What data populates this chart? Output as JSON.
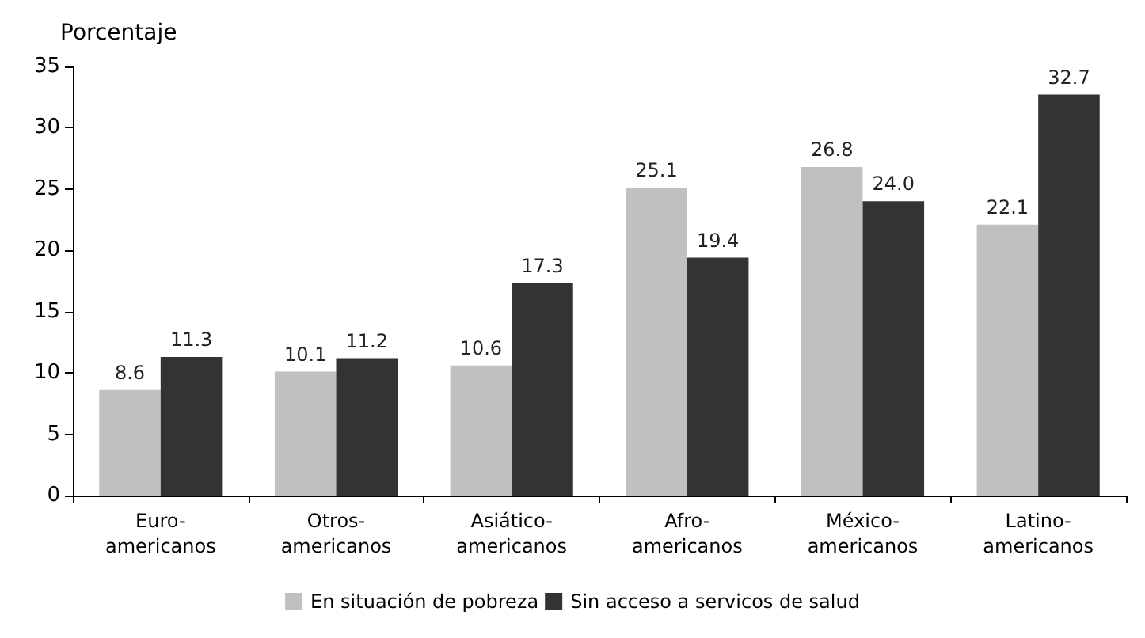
{
  "chart_data": {
    "type": "bar",
    "ylabel": "Porcentaje",
    "categories": [
      "Euro-\namericanos",
      "Otros-\namericanos",
      "Asiático-\namericanos",
      "Afro-\namericanos",
      "México-\namericanos",
      "Latino-\namericanos"
    ],
    "series": [
      {
        "name": "En situación de pobreza",
        "color": "#c0c0c0",
        "values": [
          8.6,
          10.1,
          10.6,
          25.1,
          26.8,
          22.1
        ],
        "value_labels": [
          "8.6",
          "10.1",
          "10.6",
          "25.1",
          "26.8",
          "22.1"
        ]
      },
      {
        "name": "Sin acceso a servicos de salud",
        "color": "#333333",
        "values": [
          11.3,
          11.2,
          17.3,
          19.4,
          24.0,
          32.7
        ],
        "value_labels": [
          "11.3",
          "11.2",
          "17.3",
          "19.4",
          "24.0",
          "32.7"
        ]
      }
    ],
    "ylim": [
      0,
      35
    ],
    "yticks": [
      0,
      5,
      10,
      15,
      20,
      25,
      30,
      35
    ],
    "grid": false,
    "legend": "bottom"
  }
}
